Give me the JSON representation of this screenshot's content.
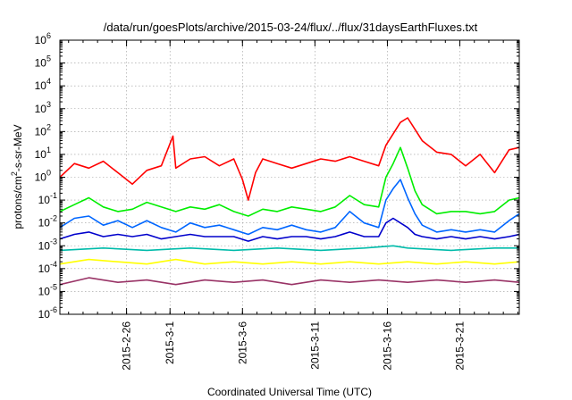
{
  "chart_data": {
    "type": "line",
    "title": "/data/run/goesPlots/archive/2015-03-24/flux/../flux/31daysEarthFluxes.txt",
    "xlabel": "Coordinated Universal Time (UTC)",
    "ylabel": "protons/cm2-s-sr-MeV",
    "ylabel_parts": {
      "pre": "protons/cm",
      "sup": "2",
      "post": "-s-sr-MeV"
    },
    "y_scale": "log",
    "ylim_exponents": [
      -6,
      6
    ],
    "y_ticks": [
      {
        "base": "10",
        "exp": "-6"
      },
      {
        "base": "10",
        "exp": "-5"
      },
      {
        "base": "10",
        "exp": "-4"
      },
      {
        "base": "10",
        "exp": "-3"
      },
      {
        "base": "10",
        "exp": "-2"
      },
      {
        "base": "10",
        "exp": "-1"
      },
      {
        "base": "10",
        "exp": "0"
      },
      {
        "base": "10",
        "exp": "1"
      },
      {
        "base": "10",
        "exp": "2"
      },
      {
        "base": "10",
        "exp": "3"
      },
      {
        "base": "10",
        "exp": "4"
      },
      {
        "base": "10",
        "exp": "5"
      },
      {
        "base": "10",
        "exp": "6"
      }
    ],
    "xlim_days": [
      -4.6,
      27.1
    ],
    "x_ticks": [
      {
        "label": "2015-2-26",
        "day": 0
      },
      {
        "label": "2015-3-1",
        "day": 3
      },
      {
        "label": "2015-3-6",
        "day": 8
      },
      {
        "label": "2015-3-11",
        "day": 13
      },
      {
        "label": "2015-3-16",
        "day": 18
      },
      {
        "label": "2015-3-21",
        "day": 23
      }
    ],
    "grid": true,
    "series": [
      {
        "color": "#ff0000",
        "points": [
          [
            -4.6,
            0.0
          ],
          [
            -3.6,
            0.6
          ],
          [
            -2.6,
            0.4
          ],
          [
            -1.6,
            0.7
          ],
          [
            -0.6,
            0.2
          ],
          [
            0.4,
            -0.3
          ],
          [
            1.4,
            0.3
          ],
          [
            2.4,
            0.5
          ],
          [
            3.2,
            1.8
          ],
          [
            3.4,
            0.4
          ],
          [
            4.4,
            0.8
          ],
          [
            5.4,
            0.9
          ],
          [
            6.4,
            0.5
          ],
          [
            7.4,
            0.8
          ],
          [
            8.0,
            -0.1
          ],
          [
            8.4,
            -1.0
          ],
          [
            8.9,
            0.2
          ],
          [
            9.4,
            0.8
          ],
          [
            10.4,
            0.6
          ],
          [
            11.4,
            0.4
          ],
          [
            12.4,
            0.6
          ],
          [
            13.4,
            0.8
          ],
          [
            14.4,
            0.7
          ],
          [
            15.4,
            0.9
          ],
          [
            16.4,
            0.7
          ],
          [
            17.4,
            0.5
          ],
          [
            17.9,
            1.4
          ],
          [
            18.4,
            1.9
          ],
          [
            18.9,
            2.4
          ],
          [
            19.4,
            2.6
          ],
          [
            19.9,
            2.1
          ],
          [
            20.4,
            1.6
          ],
          [
            21.4,
            1.1
          ],
          [
            22.4,
            1.0
          ],
          [
            23.4,
            0.5
          ],
          [
            24.4,
            1.0
          ],
          [
            25.4,
            0.2
          ],
          [
            26.4,
            1.2
          ],
          [
            27.1,
            1.3
          ]
        ]
      },
      {
        "color": "#00ee00",
        "points": [
          [
            -4.6,
            -1.5
          ],
          [
            -3.6,
            -1.2
          ],
          [
            -2.6,
            -0.9
          ],
          [
            -1.6,
            -1.3
          ],
          [
            -0.6,
            -1.5
          ],
          [
            0.4,
            -1.4
          ],
          [
            1.4,
            -1.1
          ],
          [
            2.4,
            -1.3
          ],
          [
            3.4,
            -1.5
          ],
          [
            4.4,
            -1.3
          ],
          [
            5.4,
            -1.4
          ],
          [
            6.4,
            -1.2
          ],
          [
            7.4,
            -1.5
          ],
          [
            8.4,
            -1.7
          ],
          [
            9.4,
            -1.4
          ],
          [
            10.4,
            -1.5
          ],
          [
            11.4,
            -1.3
          ],
          [
            12.4,
            -1.4
          ],
          [
            13.4,
            -1.5
          ],
          [
            14.4,
            -1.3
          ],
          [
            15.4,
            -0.8
          ],
          [
            16.4,
            -1.2
          ],
          [
            17.4,
            -1.3
          ],
          [
            17.9,
            0.0
          ],
          [
            18.4,
            0.6
          ],
          [
            18.9,
            1.3
          ],
          [
            19.4,
            0.4
          ],
          [
            19.9,
            -0.6
          ],
          [
            20.4,
            -1.2
          ],
          [
            21.4,
            -1.6
          ],
          [
            22.4,
            -1.5
          ],
          [
            23.4,
            -1.5
          ],
          [
            24.4,
            -1.6
          ],
          [
            25.4,
            -1.5
          ],
          [
            26.4,
            -1.0
          ],
          [
            27.1,
            -0.9
          ]
        ]
      },
      {
        "color": "#0066ff",
        "points": [
          [
            -4.6,
            -2.2
          ],
          [
            -3.6,
            -1.8
          ],
          [
            -2.6,
            -1.7
          ],
          [
            -1.6,
            -2.1
          ],
          [
            -0.6,
            -1.9
          ],
          [
            0.4,
            -2.2
          ],
          [
            1.4,
            -1.9
          ],
          [
            2.4,
            -2.2
          ],
          [
            3.4,
            -2.4
          ],
          [
            4.4,
            -2.0
          ],
          [
            5.4,
            -2.2
          ],
          [
            6.4,
            -2.1
          ],
          [
            7.4,
            -2.3
          ],
          [
            8.4,
            -2.5
          ],
          [
            9.4,
            -2.2
          ],
          [
            10.4,
            -2.3
          ],
          [
            11.4,
            -2.1
          ],
          [
            12.4,
            -2.3
          ],
          [
            13.4,
            -2.4
          ],
          [
            14.4,
            -2.2
          ],
          [
            15.4,
            -1.5
          ],
          [
            16.4,
            -2.0
          ],
          [
            17.4,
            -2.2
          ],
          [
            17.9,
            -1.0
          ],
          [
            18.4,
            -0.5
          ],
          [
            18.9,
            -0.1
          ],
          [
            19.4,
            -0.9
          ],
          [
            19.9,
            -1.6
          ],
          [
            20.4,
            -2.1
          ],
          [
            21.4,
            -2.4
          ],
          [
            22.4,
            -2.3
          ],
          [
            23.4,
            -2.4
          ],
          [
            24.4,
            -2.3
          ],
          [
            25.4,
            -2.4
          ],
          [
            26.4,
            -1.9
          ],
          [
            27.1,
            -1.6
          ]
        ]
      },
      {
        "color": "#0000cc",
        "points": [
          [
            -4.6,
            -2.7
          ],
          [
            -3.6,
            -2.5
          ],
          [
            -2.6,
            -2.4
          ],
          [
            -1.6,
            -2.6
          ],
          [
            -0.6,
            -2.5
          ],
          [
            0.4,
            -2.6
          ],
          [
            1.4,
            -2.5
          ],
          [
            2.4,
            -2.7
          ],
          [
            3.4,
            -2.6
          ],
          [
            4.4,
            -2.5
          ],
          [
            5.4,
            -2.6
          ],
          [
            6.4,
            -2.6
          ],
          [
            7.4,
            -2.6
          ],
          [
            8.4,
            -2.8
          ],
          [
            9.4,
            -2.6
          ],
          [
            10.4,
            -2.7
          ],
          [
            11.4,
            -2.6
          ],
          [
            12.4,
            -2.6
          ],
          [
            13.4,
            -2.7
          ],
          [
            14.4,
            -2.6
          ],
          [
            15.4,
            -2.4
          ],
          [
            16.4,
            -2.6
          ],
          [
            17.4,
            -2.6
          ],
          [
            17.9,
            -2.0
          ],
          [
            18.4,
            -1.8
          ],
          [
            18.9,
            -2.0
          ],
          [
            19.4,
            -2.2
          ],
          [
            19.9,
            -2.5
          ],
          [
            20.4,
            -2.6
          ],
          [
            21.4,
            -2.7
          ],
          [
            22.4,
            -2.6
          ],
          [
            23.4,
            -2.7
          ],
          [
            24.4,
            -2.6
          ],
          [
            25.4,
            -2.7
          ],
          [
            26.4,
            -2.6
          ],
          [
            27.1,
            -2.5
          ]
        ]
      },
      {
        "color": "#00bbaa",
        "points": [
          [
            -4.6,
            -3.2
          ],
          [
            -1.6,
            -3.1
          ],
          [
            1.4,
            -3.2
          ],
          [
            4.4,
            -3.1
          ],
          [
            7.4,
            -3.2
          ],
          [
            10.4,
            -3.1
          ],
          [
            13.4,
            -3.2
          ],
          [
            16.4,
            -3.1
          ],
          [
            18.4,
            -3.0
          ],
          [
            19.4,
            -3.1
          ],
          [
            22.4,
            -3.2
          ],
          [
            25.4,
            -3.1
          ],
          [
            27.1,
            -3.1
          ]
        ]
      },
      {
        "color": "#ffff00",
        "points": [
          [
            -4.6,
            -3.8
          ],
          [
            -2.6,
            -3.6
          ],
          [
            -0.6,
            -3.7
          ],
          [
            1.4,
            -3.8
          ],
          [
            3.4,
            -3.6
          ],
          [
            5.4,
            -3.8
          ],
          [
            7.4,
            -3.7
          ],
          [
            9.4,
            -3.8
          ],
          [
            11.4,
            -3.7
          ],
          [
            13.4,
            -3.8
          ],
          [
            15.4,
            -3.7
          ],
          [
            17.4,
            -3.8
          ],
          [
            19.4,
            -3.7
          ],
          [
            21.4,
            -3.8
          ],
          [
            23.4,
            -3.7
          ],
          [
            25.4,
            -3.8
          ],
          [
            27.1,
            -3.7
          ]
        ]
      },
      {
        "color": "#993366",
        "points": [
          [
            -4.6,
            -4.7
          ],
          [
            -2.6,
            -4.4
          ],
          [
            -0.6,
            -4.6
          ],
          [
            1.4,
            -4.5
          ],
          [
            3.4,
            -4.7
          ],
          [
            5.4,
            -4.5
          ],
          [
            7.4,
            -4.6
          ],
          [
            9.4,
            -4.5
          ],
          [
            11.4,
            -4.7
          ],
          [
            13.4,
            -4.5
          ],
          [
            15.4,
            -4.6
          ],
          [
            17.4,
            -4.5
          ],
          [
            19.4,
            -4.6
          ],
          [
            21.4,
            -4.5
          ],
          [
            23.4,
            -4.6
          ],
          [
            25.4,
            -4.5
          ],
          [
            27.1,
            -4.6
          ]
        ]
      }
    ]
  }
}
